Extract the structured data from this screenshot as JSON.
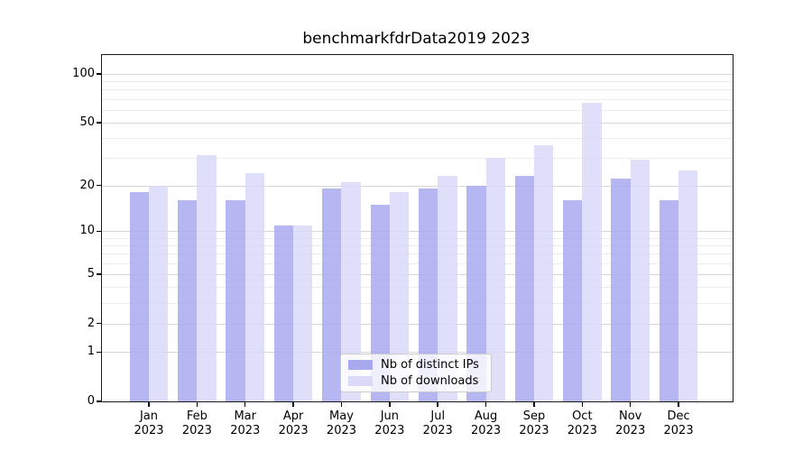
{
  "chart_data": {
    "type": "bar",
    "title": "benchmarkfdrData2019 2023",
    "categories": [
      "Jan 2023",
      "Feb 2023",
      "Mar 2023",
      "Apr 2023",
      "May 2023",
      "Jun 2023",
      "Jul 2023",
      "Aug 2023",
      "Sep 2023",
      "Oct 2023",
      "Nov 2023",
      "Dec 2023"
    ],
    "x_tick_month": [
      "Jan",
      "Feb",
      "Mar",
      "Apr",
      "May",
      "Jun",
      "Jul",
      "Aug",
      "Sep",
      "Oct",
      "Nov",
      "Dec"
    ],
    "x_tick_year": "2023",
    "series": [
      {
        "name": "Nb of distinct IPs",
        "color": "#a9a9f0",
        "values": [
          18,
          16,
          16,
          11,
          19,
          15,
          19,
          20,
          23,
          16,
          22,
          16
        ]
      },
      {
        "name": "Nb of downloads",
        "color": "#d9d9f8",
        "values": [
          20,
          31,
          24,
          11,
          21,
          18,
          23,
          30,
          36,
          66,
          29,
          25
        ]
      }
    ],
    "y_scale": "log10(1+x)",
    "y_ticks": [
      0,
      1,
      2,
      5,
      10,
      20,
      50,
      100
    ],
    "y_minor_gridlines": [
      3,
      4,
      6,
      7,
      8,
      9,
      30,
      40,
      60,
      70,
      80,
      90
    ],
    "ylim": [
      0,
      131
    ],
    "xlabel": "",
    "ylabel": "",
    "grid": true,
    "legend_position": "lower center"
  },
  "colors": {
    "bar_distinct_ips": "#a9a9f0",
    "bar_downloads": "#d9d9f8",
    "grid_major": "#d6d6d6",
    "grid_minor": "#ececec",
    "axis": "#1a1a1a",
    "background": "#ffffff",
    "legend_border": "#cccccc"
  }
}
